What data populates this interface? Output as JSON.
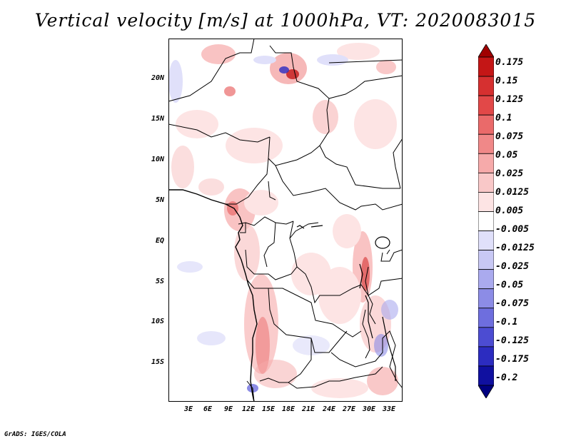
{
  "title": "Vertical velocity [m/s] at 1000hPa, VT: 2020083015",
  "map": {
    "lat_ticks": [
      "20N",
      "15N",
      "10N",
      "5N",
      "EQ",
      "5S",
      "10S",
      "15S"
    ],
    "lon_ticks": [
      "3E",
      "6E",
      "9E",
      "12E",
      "15E",
      "18E",
      "21E",
      "24E",
      "27E",
      "30E",
      "33E"
    ]
  },
  "colorbar": {
    "labels": [
      "0.175",
      "0.15",
      "0.125",
      "0.1",
      "0.075",
      "0.05",
      "0.025",
      "0.0125",
      "0.005",
      "-0.005",
      "-0.0125",
      "-0.025",
      "-0.05",
      "-0.075",
      "-0.1",
      "-0.125",
      "-0.175",
      "-0.2"
    ],
    "colors": [
      "#a00000",
      "#c41616",
      "#d63030",
      "#e24848",
      "#ea6a6a",
      "#f08888",
      "#f6aaaa",
      "#f9c8c8",
      "#fde4e4",
      "#ffffff",
      "#e0e0fa",
      "#c8c8f4",
      "#aaaaee",
      "#8c8ce6",
      "#6e6ede",
      "#4c4cd2",
      "#2c2cc0",
      "#1010a0",
      "#000080"
    ]
  },
  "credit": "GrADS: IGES/COLA"
}
